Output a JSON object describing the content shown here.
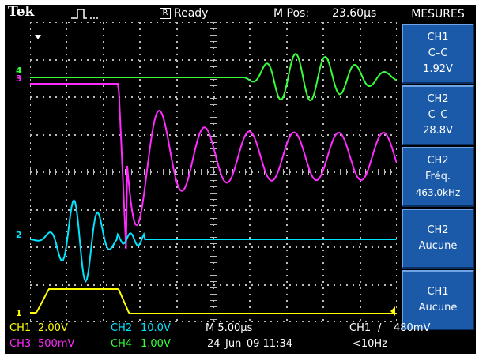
{
  "header": {
    "brand": "Tek",
    "acq_state": "Ready",
    "acq_state_icon": "R",
    "mpos_label": "M Pos:",
    "mpos_value": "23.60µs"
  },
  "side_menu": {
    "title": "MESURES",
    "items": [
      {
        "line1": "CH1",
        "line2": "C–C",
        "line3": "1.92V"
      },
      {
        "line1": "CH2",
        "line2": "C–C",
        "line3": "28.8V"
      },
      {
        "line1": "CH2",
        "line2": "Fréq.",
        "line3": "463.0kHz"
      },
      {
        "line1": "CH2",
        "line2": "Aucune",
        "line3": ""
      },
      {
        "line1": "CH1",
        "line2": "Aucune",
        "line3": ""
      }
    ]
  },
  "markers": {
    "ch1": "1",
    "ch2": "2",
    "ch3": "3",
    "ch4": "4"
  },
  "footer": {
    "ch1_label": "CH1",
    "ch1_scale": "2.00V",
    "ch2_label": "CH2",
    "ch2_scale": "10.0V",
    "time_scale": "M 5.00µs",
    "trig_src": "CH1",
    "trig_slope": "/",
    "trig_level": "480mV",
    "ch3_label": "CH3",
    "ch3_scale": "500mV",
    "ch4_label": "CH4",
    "ch4_scale": "1.00V",
    "date": "24–Jun–09 11:34",
    "trig_freq": "<10Hz"
  },
  "colors": {
    "ch1": "#ffff00",
    "ch2": "#00e5ff",
    "ch3": "#ff2bff",
    "ch4": "#36ff3a",
    "menu_bg": "#1a5aa8"
  }
}
